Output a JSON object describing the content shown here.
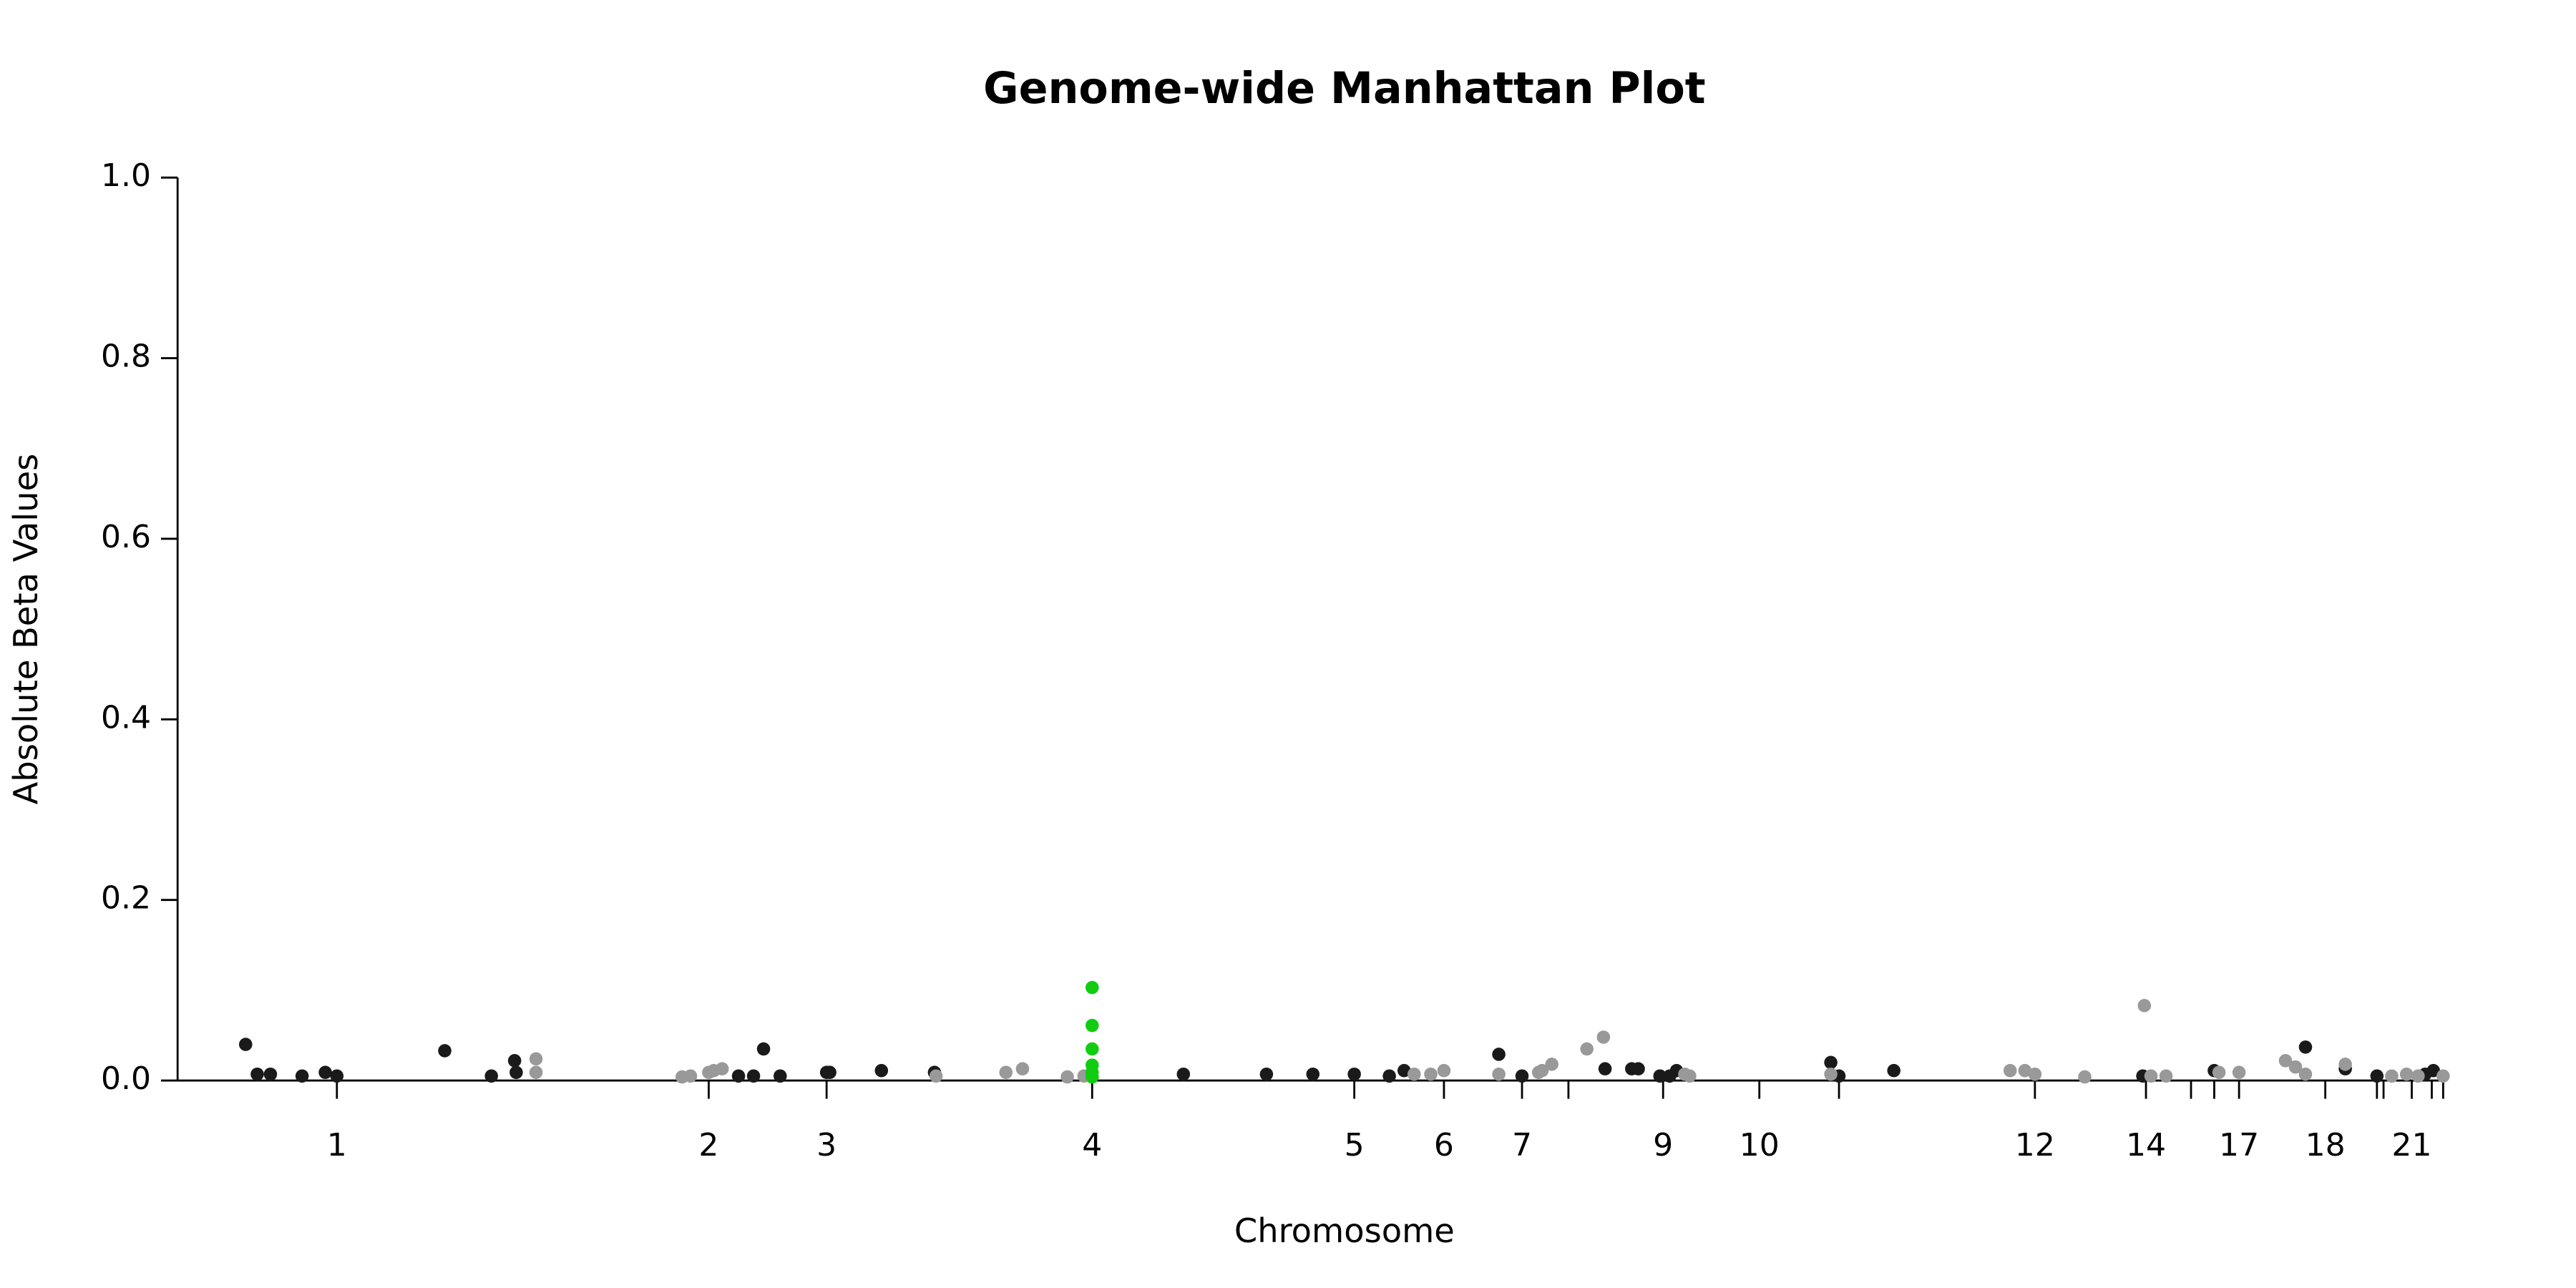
{
  "chart_data": {
    "type": "scatter",
    "title": "Genome-wide Manhattan Plot",
    "xlabel": "Chromosome",
    "ylabel": "Absolute Beta Values",
    "xlim": [
      0,
      1000
    ],
    "ylim": [
      0,
      1.0
    ],
    "yticks": [
      {
        "value": 0,
        "label": "0.0"
      },
      {
        "value": 0.2,
        "label": "0.2"
      },
      {
        "value": 0.4,
        "label": "0.4"
      },
      {
        "value": 0.6,
        "label": "0.6"
      },
      {
        "value": 0.8,
        "label": "0.8"
      },
      {
        "value": 1.0,
        "label": "1.0"
      }
    ],
    "xticks": [
      {
        "value": 70.0,
        "label": "1"
      },
      {
        "value": 233.4,
        "label": "2"
      },
      {
        "value": 285.2,
        "label": "3"
      },
      {
        "value": 401.9,
        "label": "4"
      },
      {
        "value": 517.1,
        "label": "5"
      },
      {
        "value": 556.5,
        "label": "6"
      },
      {
        "value": 590.8,
        "label": "7"
      },
      {
        "value": 611.2,
        "label": null
      },
      {
        "value": 652.8,
        "label": "9"
      },
      {
        "value": 695.1,
        "label": "10"
      },
      {
        "value": 730.1,
        "label": null
      },
      {
        "value": 816.2,
        "label": "12"
      },
      {
        "value": 865.0,
        "label": "14"
      },
      {
        "value": 884.8,
        "label": null
      },
      {
        "value": 895.0,
        "label": null
      },
      {
        "value": 905.9,
        "label": "17"
      },
      {
        "value": 943.8,
        "label": "18"
      },
      {
        "value": 966.5,
        "label": null
      },
      {
        "value": 969.4,
        "label": null
      },
      {
        "value": 981.8,
        "label": "21"
      },
      {
        "value": 990.6,
        "label": null
      },
      {
        "value": 995.6,
        "label": null
      }
    ],
    "series": [
      {
        "color": "#1a1a1a",
        "x": [
          29.9,
          35.0,
          40.8,
          54.7,
          64.9,
          70.0,
          117.4,
          137.9,
          148.1,
          148.8,
          246.5,
          253.1,
          257.5,
          264.8,
          285.2,
          286.6,
          309.3,
          332.6,
          442.0,
          478.5,
          498.9,
          517.1,
          532.5,
          539.0,
          580.6,
          590.8,
          627.3,
          639.0,
          641.9,
          651.4,
          655.7,
          658.7,
          726.5,
          730.1,
          754.2,
          863.6,
          895.0,
          935.1,
          952.6,
          966.5,
          987.7,
          991.3
        ],
        "values": [
          0.04,
          0.007,
          0.007,
          0.005,
          0.009,
          0.005,
          0.033,
          0.005,
          0.022,
          0.009,
          0.005,
          0.005,
          0.035,
          0.005,
          0.009,
          0.009,
          0.011,
          0.009,
          0.007,
          0.007,
          0.007,
          0.007,
          0.005,
          0.011,
          0.029,
          0.005,
          0.013,
          0.013,
          0.013,
          0.005,
          0.005,
          0.011,
          0.02,
          0.005,
          0.011,
          0.005,
          0.011,
          0.037,
          0.013,
          0.005,
          0.007,
          0.011
        ]
      },
      {
        "color": "#999999",
        "x": [
          157.5,
          157.5,
          221.7,
          225.4,
          233.4,
          235.6,
          239.3,
          333.3,
          364.0,
          371.3,
          391.0,
          398.3,
          543.4,
          550.7,
          556.5,
          580.6,
          598.1,
          599.6,
          603.9,
          619.3,
          626.6,
          662.3,
          664.5,
          726.5,
          805.3,
          811.8,
          816.2,
          838.1,
          864.3,
          867.2,
          873.8,
          897.1,
          905.9,
          926.3,
          930.7,
          935.1,
          952.6,
          973.0,
          979.5,
          984.6,
          995.6
        ],
        "values": [
          0.024,
          0.009,
          0.004,
          0.005,
          0.009,
          0.011,
          0.013,
          0.005,
          0.009,
          0.013,
          0.004,
          0.005,
          0.007,
          0.007,
          0.011,
          0.007,
          0.009,
          0.011,
          0.018,
          0.035,
          0.048,
          0.007,
          0.005,
          0.007,
          0.011,
          0.011,
          0.007,
          0.004,
          0.083,
          0.005,
          0.005,
          0.009,
          0.009,
          0.022,
          0.015,
          0.007,
          0.018,
          0.005,
          0.007,
          0.005,
          0.005
        ]
      },
      {
        "color": "#11cc11",
        "x": [
          401.9,
          401.9,
          401.9,
          401.9,
          401.9,
          401.9
        ],
        "values": [
          0.103,
          0.061,
          0.035,
          0.017,
          0.009,
          0.004
        ]
      }
    ]
  }
}
